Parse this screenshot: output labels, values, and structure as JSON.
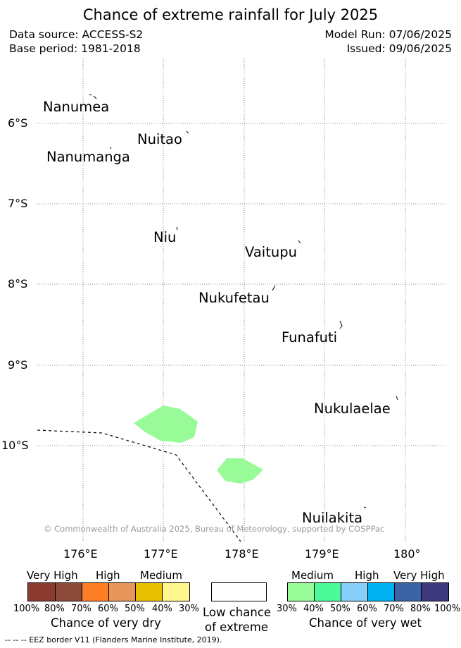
{
  "header": {
    "title": "Chance of extreme rainfall for July 2025",
    "data_source": "Data source: ACCESS-S2",
    "base_period": "Base period: 1981-2018",
    "model_run": "Model Run: 07/06/2025",
    "issued": "Issued: 09/06/2025"
  },
  "map": {
    "lat_labels": [
      "6°S",
      "7°S",
      "8°S",
      "9°S",
      "10°S"
    ],
    "lon_labels": [
      "176°E",
      "177°E",
      "178°E",
      "179°E",
      "180°"
    ],
    "islands": [
      "Nanumea",
      "Nuitao",
      "Nanumanga",
      "Niu",
      "Vaitupu",
      "Nukufetau",
      "Funafuti",
      "Nukulaelae",
      "Nuilakita"
    ],
    "copyright": "© Commonwealth of Australia 2025, Bureau of Meteorology, supported by COSPPac",
    "shaded_category": "Medium chance of very wet (30%-40%)",
    "shaded_color": "#98fb98"
  },
  "legend": {
    "dry": {
      "categories": [
        "Very High",
        "High",
        "Medium"
      ],
      "ticks": [
        "100%",
        "80%",
        "70%",
        "60%",
        "50%",
        "40%",
        "30%"
      ],
      "colors": [
        "#8b3a2f",
        "#8b4c3a",
        "#ff7f27",
        "#e8965a",
        "#e8c000",
        "#fff68f"
      ],
      "title": "Chance of very dry"
    },
    "low": {
      "line1": "Low chance",
      "line2": "of extreme",
      "color": "#ffffff"
    },
    "wet": {
      "categories": [
        "Medium",
        "High",
        "Very High"
      ],
      "ticks": [
        "30%",
        "40%",
        "50%",
        "60%",
        "70%",
        "80%",
        "100%"
      ],
      "colors": [
        "#98fb98",
        "#4dfa9a",
        "#87cefa",
        "#00b0f0",
        "#3a64a6",
        "#3c3a7c"
      ],
      "title": "Chance of very wet"
    }
  },
  "footnote": "-- -- -- EEZ border V11 (Flanders Marine Institute, 2019)."
}
